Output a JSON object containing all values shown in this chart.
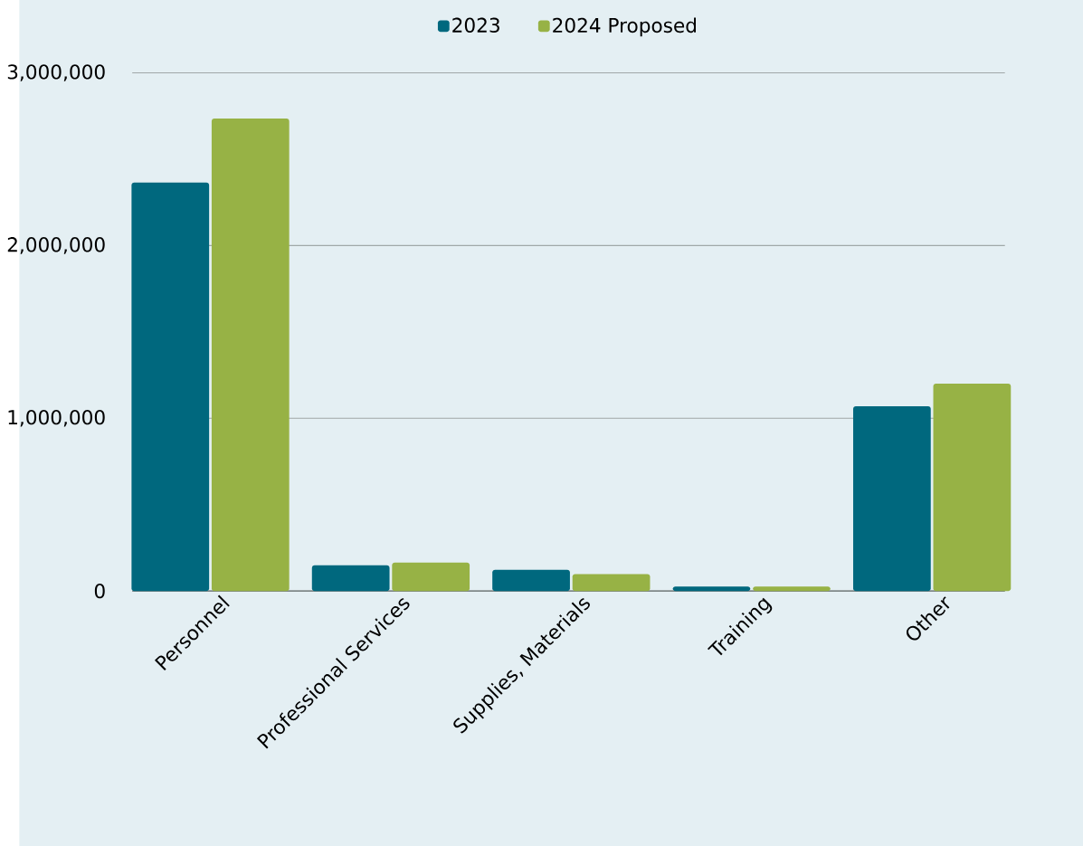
{
  "chart_data": {
    "type": "bar",
    "categories": [
      "Personnel",
      "Professional Services",
      "Supplies, Materials",
      "Training",
      "Other"
    ],
    "series": [
      {
        "name": "2023",
        "color": "#00687e",
        "values": [
          2365000,
          149000,
          123000,
          26000,
          1070000
        ]
      },
      {
        "name": "2024 Proposed",
        "color": "#97b245",
        "values": [
          2735000,
          165000,
          98000,
          26000,
          1200000
        ]
      }
    ],
    "ylim": [
      0,
      3000000
    ],
    "yticks": [
      0,
      {
        "value": 1000000,
        "label": "1,000,000"
      },
      {
        "value": 2000000,
        "label": "2,000,000"
      },
      {
        "value": 3000000,
        "label": "3,000,000"
      }
    ],
    "grid": "y",
    "legend": "top"
  }
}
